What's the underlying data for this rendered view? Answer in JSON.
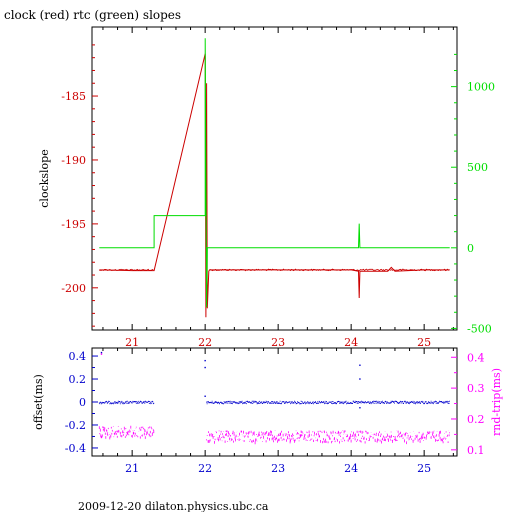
{
  "title": "clock (red) rtc (green) slopes",
  "footer": "2009-12-20  dilaton.physics.ubc.ca",
  "colors": {
    "red": "#cc0000",
    "green": "#00dd00",
    "blue": "#0000cc",
    "magenta": "#ff00ff",
    "frame": "#000000"
  },
  "chart_data": [
    {
      "type": "line",
      "ylabel": "clockslope",
      "ylabel_right": "",
      "xlim": [
        20.45,
        25.45
      ],
      "ylim_left": [
        -203.3,
        -179.6
      ],
      "ylim_right": [
        -510,
        1370
      ],
      "x_ticks": [
        "21",
        "22",
        "23",
        "24",
        "25"
      ],
      "y_ticks_left": [
        "-185",
        "-190",
        "-195",
        "-200"
      ],
      "y_ticks_right": [
        "1000",
        "500",
        "0",
        "-500"
      ],
      "series": [
        {
          "color": "red",
          "axis": "left",
          "x": [
            20.55,
            21.0,
            21.3,
            22.0,
            22.01,
            22.02,
            22.03,
            22.05,
            22.06,
            22.5,
            23.0,
            23.5,
            24.0,
            24.1,
            24.11,
            24.12,
            24.3,
            24.5,
            24.55,
            24.6,
            25.0,
            25.35
          ],
          "y": [
            -198.6,
            -198.65,
            -198.65,
            -181.7,
            -202.3,
            -184.0,
            -201.6,
            -198.7,
            -198.6,
            -198.6,
            -198.6,
            -198.6,
            -198.6,
            -198.7,
            -200.8,
            -198.7,
            -198.7,
            -198.7,
            -198.4,
            -198.7,
            -198.6,
            -198.6
          ]
        },
        {
          "color": "green",
          "axis": "right",
          "x": [
            20.55,
            21.3,
            21.3,
            22.0,
            22.0,
            22.02,
            22.03,
            24.1,
            24.11,
            24.12,
            25.35
          ],
          "y": [
            0,
            0,
            200,
            200,
            1300,
            -370,
            0,
            0,
            150,
            0,
            0
          ]
        }
      ]
    },
    {
      "type": "scatter",
      "ylabel": "offset(ms)",
      "ylabel_right": "rnd-trip(ms)",
      "xlim": [
        20.45,
        25.45
      ],
      "ylim_left": [
        -0.47,
        0.47
      ],
      "ylim_right": [
        0.08,
        0.43
      ],
      "x_ticks": [
        "21",
        "22",
        "23",
        "24",
        "25"
      ],
      "y_ticks_left": [
        "0.4",
        "0.2",
        "0",
        "-0.2",
        "-0.4"
      ],
      "y_ticks_right": [
        "0.4",
        "0.3",
        "0.2",
        "0.1"
      ],
      "series": [
        {
          "color": "blue",
          "axis": "left",
          "segments": [
            {
              "x_start": 20.55,
              "x_end": 21.3,
              "level": 0.0
            },
            {
              "x_start": 22.02,
              "x_end": 25.35,
              "level": 0.0
            }
          ],
          "outliers": [
            {
              "x": 20.58,
              "y": 0.43
            },
            {
              "x": 22.0,
              "y": 0.36
            },
            {
              "x": 22.0,
              "y": 0.3
            },
            {
              "x": 22.0,
              "y": 0.05
            },
            {
              "x": 24.12,
              "y": 0.32
            },
            {
              "x": 24.12,
              "y": 0.2
            },
            {
              "x": 24.12,
              "y": -0.05
            }
          ]
        },
        {
          "color": "magenta",
          "axis": "right",
          "segments": [
            {
              "x_start": 20.55,
              "x_end": 21.3,
              "level": 0.16
            },
            {
              "x_start": 22.02,
              "x_end": 25.35,
              "level": 0.145
            }
          ],
          "outliers": [
            {
              "x": 20.58,
              "y": 0.41
            }
          ]
        }
      ]
    }
  ]
}
